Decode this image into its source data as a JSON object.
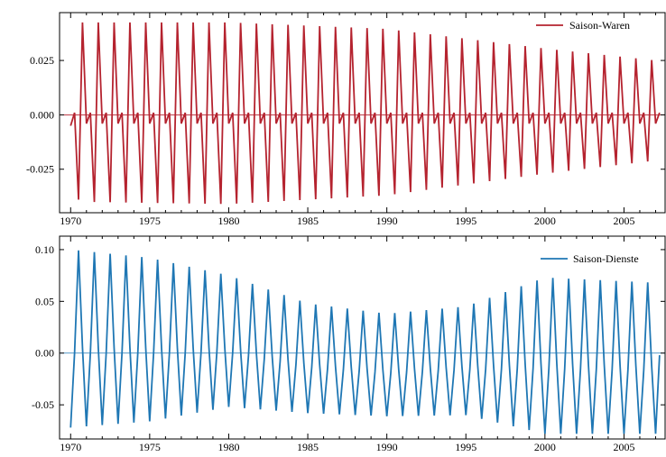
{
  "chart_data": [
    {
      "type": "line",
      "title": "",
      "xlabel": "",
      "ylabel": "",
      "frequency": "quarterly",
      "x_start": 1970.0,
      "x_end": 2007.25,
      "xlim": [
        1969.3,
        2007.6
      ],
      "ylim": [
        -0.045,
        0.047
      ],
      "xticks": [
        1970,
        1975,
        1980,
        1985,
        1990,
        1995,
        2000,
        2005
      ],
      "xtick_labels": [
        "1970",
        "1975",
        "1980",
        "1985",
        "1990",
        "1995",
        "2000",
        "2005"
      ],
      "yticks": [
        0.025,
        0.0,
        -0.025
      ],
      "ytick_labels": [
        "0.025",
        "0.000",
        "-0.025"
      ],
      "zero_line": true,
      "grid": false,
      "legend_position": "top-right",
      "series": [
        {
          "name": "Saison-Waren",
          "color": "#b5232f",
          "pattern": "seasonal peak-near-zero-trough-near-zero",
          "start_values": [
            -0.005,
            0.001,
            -0.039
          ],
          "amplitude_positive": [
            [
              1970.75,
              0.0425
            ],
            [
              1980,
              0.0425
            ],
            [
              1990,
              0.0395
            ],
            [
              2000,
              0.0305
            ],
            [
              2007,
              0.025
            ]
          ],
          "amplitude_negative": [
            [
              1970.75,
              -0.04
            ],
            [
              1980,
              -0.041
            ],
            [
              1990,
              -0.037
            ],
            [
              2000,
              -0.027
            ],
            [
              2007,
              -0.021
            ]
          ],
          "small_positive": 0.001,
          "small_negative": -0.004
        }
      ]
    },
    {
      "type": "line",
      "title": "",
      "xlabel": "",
      "ylabel": "",
      "frequency": "quarterly",
      "x_start": 1970.0,
      "x_end": 2007.25,
      "xlim": [
        1969.3,
        2007.6
      ],
      "ylim": [
        -0.083,
        0.113
      ],
      "xticks": [
        1970,
        1975,
        1980,
        1985,
        1990,
        1995,
        2000,
        2005
      ],
      "xtick_labels": [
        "1970",
        "1975",
        "1980",
        "1985",
        "1990",
        "1995",
        "2000",
        "2005"
      ],
      "yticks": [
        0.1,
        0.05,
        0.0,
        -0.05
      ],
      "ytick_labels": [
        "0.10",
        "0.05",
        "0.00",
        "-0.05"
      ],
      "zero_line": true,
      "grid": false,
      "legend_position": "top-right",
      "series": [
        {
          "name": "Saison-Dienste",
          "color": "#1f77b4",
          "pattern": "seasonal trough-rise-peak-fall",
          "peak_envelope": [
            [
              1970,
              0.1
            ],
            [
              1975,
              0.092
            ],
            [
              1980,
              0.075
            ],
            [
              1985,
              0.048
            ],
            [
              1990,
              0.038
            ],
            [
              1995,
              0.045
            ],
            [
              2000,
              0.073
            ],
            [
              2007,
              0.068
            ]
          ],
          "trough_envelope": [
            [
              1970,
              -0.072
            ],
            [
              1975,
              -0.066
            ],
            [
              1980,
              -0.052
            ],
            [
              1985,
              -0.058
            ],
            [
              1990,
              -0.061
            ],
            [
              1995,
              -0.06
            ],
            [
              2000,
              -0.078
            ],
            [
              2007,
              -0.078
            ]
          ],
          "end_value": -0.002
        }
      ]
    }
  ]
}
